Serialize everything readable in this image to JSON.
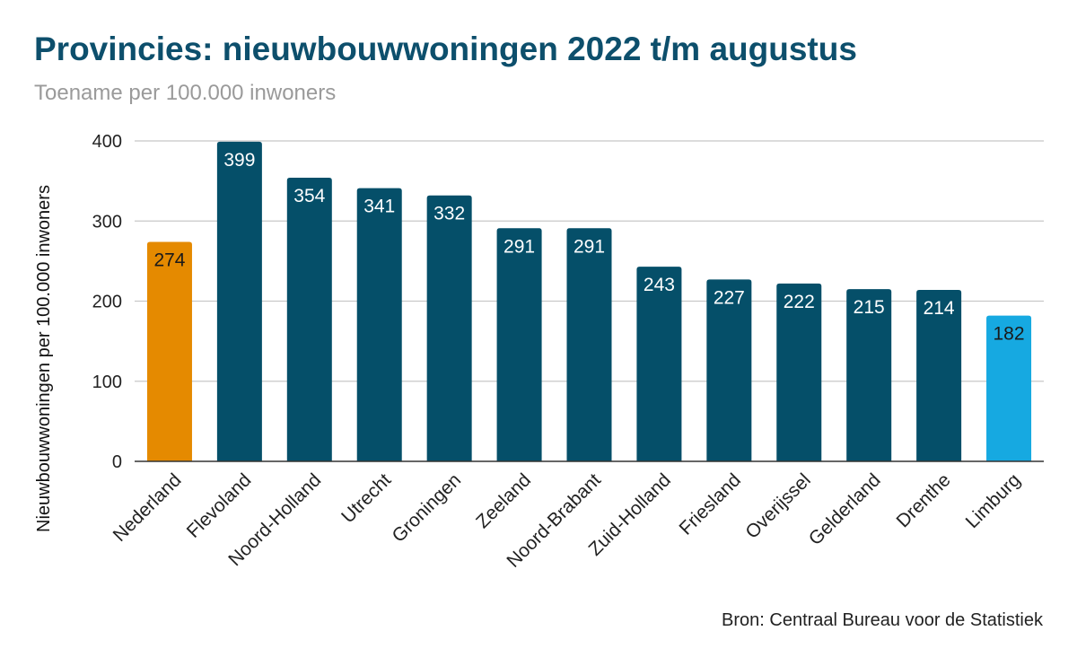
{
  "header": {
    "title": "Provincies: nieuwbouwwoningen 2022 t/m augustus",
    "subtitle": "Toename per 100.000 inwoners"
  },
  "footer": {
    "source": "Bron: Centraal Bureau voor de Statistiek"
  },
  "chart_data": {
    "type": "bar",
    "title": "Provincies: nieuwbouwwoningen 2022 t/m augustus",
    "subtitle": "Toename per 100.000 inwoners",
    "xlabel": "",
    "ylabel": "Nieuwbouwwoningen per 100.000 inwoners",
    "ylim": [
      0,
      400
    ],
    "yticks": [
      0,
      100,
      200,
      300,
      400
    ],
    "grid": true,
    "legend": "none",
    "categories": [
      "Nederland",
      "Flevoland",
      "Noord-Holland",
      "Utrecht",
      "Groningen",
      "Zeeland",
      "Noord-Brabant",
      "Zuid-Holland",
      "Friesland",
      "Overijssel",
      "Gelderland",
      "Drenthe",
      "Limburg"
    ],
    "values": [
      274,
      399,
      354,
      341,
      332,
      291,
      291,
      243,
      227,
      222,
      215,
      214,
      182
    ],
    "colors": [
      "#e58a00",
      "#054f69",
      "#054f69",
      "#054f69",
      "#054f69",
      "#054f69",
      "#054f69",
      "#054f69",
      "#054f69",
      "#054f69",
      "#054f69",
      "#054f69",
      "#16a9e1"
    ],
    "label_colors": [
      "#1a1a1a",
      "#ffffff",
      "#ffffff",
      "#ffffff",
      "#ffffff",
      "#ffffff",
      "#ffffff",
      "#ffffff",
      "#ffffff",
      "#ffffff",
      "#ffffff",
      "#ffffff",
      "#1a1a1a"
    ],
    "source": "Bron: Centraal Bureau voor de Statistiek"
  }
}
